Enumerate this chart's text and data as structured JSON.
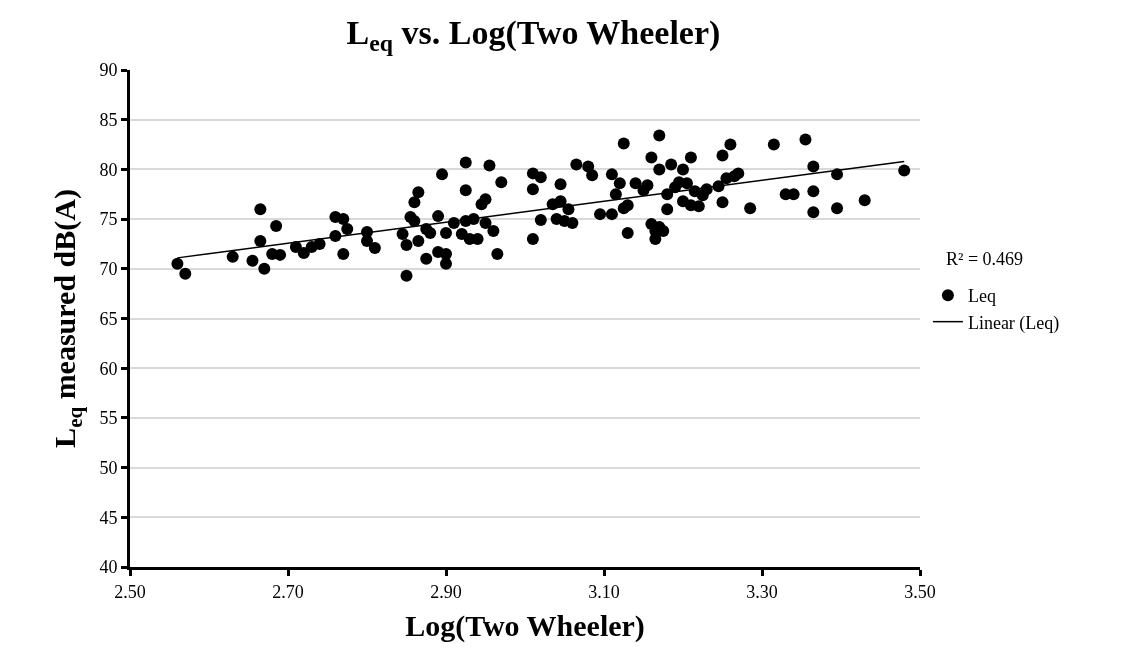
{
  "chart_data": {
    "type": "scatter",
    "title": "L$_{eq}$ vs. Log(Two Wheeler)",
    "xlabel": "Log(Two Wheeler)",
    "ylabel": "L$_{eq}$ measured dB(A)",
    "series": [
      {
        "name": "Leq",
        "color": "#000000",
        "marker": "circle",
        "x": [
          2.56,
          2.57,
          2.63,
          2.655,
          2.665,
          2.665,
          2.67,
          2.68,
          2.685,
          2.69,
          2.71,
          2.72,
          2.73,
          2.74,
          2.76,
          2.76,
          2.77,
          2.77,
          2.775,
          2.8,
          2.8,
          2.81,
          2.845,
          2.85,
          2.85,
          2.855,
          2.86,
          2.86,
          2.865,
          2.865,
          2.875,
          2.875,
          2.88,
          2.89,
          2.89,
          2.895,
          2.9,
          2.9,
          2.9,
          2.91,
          2.92,
          2.925,
          2.925,
          2.925,
          2.93,
          2.935,
          2.94,
          2.945,
          2.95,
          2.95,
          2.955,
          2.96,
          2.965,
          2.97,
          3.01,
          3.01,
          3.01,
          3.02,
          3.02,
          3.035,
          3.04,
          3.045,
          3.045,
          3.05,
          3.055,
          3.06,
          3.065,
          3.08,
          3.085,
          3.095,
          3.11,
          3.11,
          3.115,
          3.12,
          3.125,
          3.125,
          3.13,
          3.13,
          3.14,
          3.15,
          3.155,
          3.16,
          3.16,
          3.165,
          3.165,
          3.17,
          3.17,
          3.17,
          3.175,
          3.18,
          3.18,
          3.185,
          3.19,
          3.195,
          3.2,
          3.2,
          3.205,
          3.21,
          3.21,
          3.215,
          3.22,
          3.225,
          3.23,
          3.245,
          3.25,
          3.25,
          3.255,
          3.26,
          3.265,
          3.27,
          3.285,
          3.315,
          3.33,
          3.34,
          3.355,
          3.365,
          3.365,
          3.365,
          3.395,
          3.395,
          3.43,
          3.48
        ],
        "values": [
          70.5,
          69.5,
          71.2,
          70.8,
          72.8,
          76.0,
          70.0,
          71.5,
          74.3,
          71.4,
          72.2,
          71.6,
          72.2,
          72.5,
          73.3,
          75.2,
          75.0,
          71.5,
          74.0,
          73.7,
          72.8,
          72.1,
          73.5,
          72.4,
          69.3,
          75.2,
          76.7,
          74.8,
          77.7,
          72.8,
          74.0,
          71.0,
          73.6,
          75.3,
          71.7,
          79.5,
          73.6,
          71.5,
          70.5,
          74.6,
          73.5,
          77.9,
          80.7,
          74.8,
          73.0,
          75.0,
          73.0,
          76.5,
          77.0,
          74.6,
          80.4,
          73.8,
          71.5,
          78.7,
          78.0,
          73.0,
          79.6,
          79.2,
          74.9,
          76.5,
          75.0,
          78.5,
          76.8,
          74.8,
          76.0,
          74.6,
          80.5,
          80.3,
          79.4,
          75.5,
          75.5,
          79.5,
          77.5,
          78.6,
          82.6,
          76.1,
          73.6,
          76.4,
          78.6,
          77.9,
          78.4,
          74.5,
          81.2,
          73.0,
          73.8,
          74.2,
          83.4,
          80.0,
          73.8,
          76.0,
          77.5,
          80.5,
          78.2,
          78.7,
          76.8,
          80.0,
          78.6,
          81.2,
          76.4,
          77.8,
          76.3,
          77.4,
          78.0,
          78.3,
          81.4,
          76.7,
          79.1,
          82.5,
          79.3,
          79.6,
          76.1,
          82.5,
          77.5,
          77.5,
          83.0,
          80.3,
          77.8,
          75.7,
          79.5,
          76.1,
          76.9,
          79.9
        ]
      },
      {
        "name": "Linear (Leq)",
        "color": "#000000",
        "type": "line",
        "x": [
          2.56,
          3.48
        ],
        "values": [
          71.1,
          80.8
        ]
      }
    ],
    "xlim": [
      2.5,
      3.5
    ],
    "xticks": [
      {
        "value": 2.5,
        "label": "2.50"
      },
      {
        "value": 2.7,
        "label": "2.70"
      },
      {
        "value": 2.9,
        "label": "2.90"
      },
      {
        "value": 3.1,
        "label": "3.10"
      },
      {
        "value": 3.3,
        "label": "3.30"
      },
      {
        "value": 3.5,
        "label": "3.50"
      }
    ],
    "ylim": [
      40,
      90
    ],
    "yticks": [
      40,
      45,
      50,
      55,
      60,
      65,
      70,
      75,
      80,
      85,
      90
    ],
    "grid": "y",
    "legend": "right",
    "annotations": [
      "R² = 0.469"
    ]
  }
}
